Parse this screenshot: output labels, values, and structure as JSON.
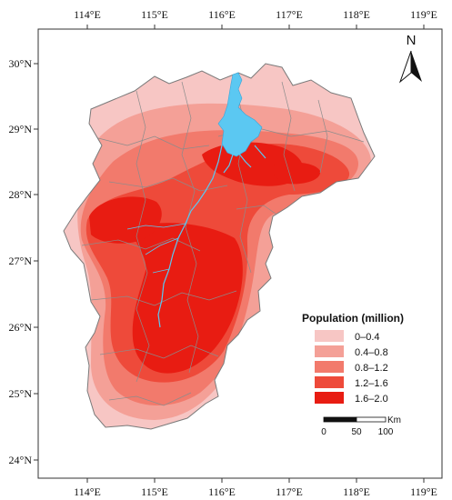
{
  "map": {
    "longitude_ticks": [
      "114°E",
      "115°E",
      "116°E",
      "117°E",
      "118°E",
      "119°E"
    ],
    "latitude_ticks": [
      "30°N",
      "29°N",
      "28°N",
      "27°N",
      "26°N",
      "25°N",
      "24°N"
    ],
    "north_arrow_label": "N",
    "legend": {
      "title": "Population (million)",
      "classes": [
        {
          "label": "0–0.4",
          "color": "#f7c6c4"
        },
        {
          "label": "0.4–0.8",
          "color": "#f4a097"
        },
        {
          "label": "0.8–1.2",
          "color": "#f27a6c"
        },
        {
          "label": "1.2–1.6",
          "color": "#ee4a3a"
        },
        {
          "label": "1.6–2.0",
          "color": "#e81c12"
        }
      ]
    },
    "scale_bar": {
      "unit": "Km",
      "labels": [
        "0",
        "50",
        "100"
      ]
    },
    "colors": {
      "water": "#5bc8f2",
      "county_boundary": "#8c8c8c",
      "frame": "#333333"
    }
  }
}
